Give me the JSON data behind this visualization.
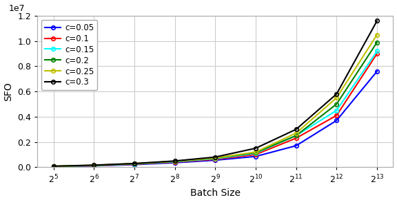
{
  "x_values": [
    32,
    64,
    128,
    256,
    512,
    1024,
    2048,
    4096,
    8192
  ],
  "x_labels": [
    "2^5",
    "2^6",
    "2^7",
    "2^8",
    "2^9",
    "2^{10}",
    "2^{11}",
    "2^{12}",
    "2^{13}"
  ],
  "series": [
    {
      "label": "c=0.05",
      "color": "#0000ff",
      "values": [
        50000,
        100000,
        200000,
        350000,
        550000,
        850000,
        1700000,
        3700000,
        7600000
      ]
    },
    {
      "label": "c=0.1",
      "color": "#ff0000",
      "values": [
        55000,
        120000,
        230000,
        400000,
        620000,
        1000000,
        2300000,
        4100000,
        9000000
      ]
    },
    {
      "label": "c=0.15",
      "color": "#00ffff",
      "values": [
        60000,
        130000,
        250000,
        430000,
        670000,
        1100000,
        2500000,
        4500000,
        9200000
      ]
    },
    {
      "label": "c=0.2",
      "color": "#008000",
      "values": [
        65000,
        140000,
        270000,
        460000,
        710000,
        1150000,
        2500000,
        5000000,
        9900000
      ]
    },
    {
      "label": "c=0.25",
      "color": "#bfbf00",
      "values": [
        70000,
        150000,
        280000,
        470000,
        730000,
        1200000,
        2700000,
        5500000,
        10500000
      ]
    },
    {
      "label": "c=0.3",
      "color": "#000000",
      "values": [
        75000,
        160000,
        290000,
        490000,
        800000,
        1500000,
        3000000,
        5800000,
        11600000
      ]
    }
  ],
  "ylabel": "SFO",
  "xlabel": "Batch Size",
  "ylim": [
    0,
    12000000.0
  ],
  "ytick_values": [
    0.0,
    0.2,
    0.4,
    0.6,
    0.8,
    1.0,
    1.2
  ],
  "figsize": [
    5.76,
    2.94
  ],
  "dpi": 100,
  "plot_bg": "#ffffff",
  "fig_bg": "#ffffff",
  "grid_color": "#cccccc",
  "legend_fontsize": 8.5,
  "tick_labelsize": 9,
  "axis_labelsize": 10
}
